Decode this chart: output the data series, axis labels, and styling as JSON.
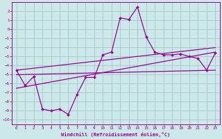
{
  "xlabel": "Windchill (Refroidissement éolien,°C)",
  "bg_color": "#cce8e8",
  "grid_color": "#aacccc",
  "line_color": "#990099",
  "xlim": [
    -0.5,
    23.5
  ],
  "ylim": [
    -10.5,
    3.0
  ],
  "xticks": [
    0,
    1,
    2,
    3,
    4,
    5,
    6,
    7,
    8,
    9,
    10,
    11,
    12,
    13,
    14,
    15,
    16,
    17,
    18,
    19,
    20,
    21,
    22,
    23
  ],
  "yticks": [
    2,
    1,
    0,
    -1,
    -2,
    -3,
    -4,
    -5,
    -6,
    -7,
    -8,
    -9,
    -10
  ],
  "series1_x": [
    0,
    1,
    2,
    3,
    4,
    5,
    6,
    7,
    8,
    9,
    10,
    11,
    12,
    13,
    14,
    15,
    16,
    17,
    18,
    19,
    20,
    21,
    22,
    23
  ],
  "series1_y": [
    -4.5,
    -6.2,
    -5.2,
    -8.8,
    -9.0,
    -8.8,
    -9.4,
    -7.2,
    -5.3,
    -5.3,
    -2.8,
    -2.5,
    1.3,
    1.1,
    2.5,
    -0.8,
    -2.5,
    -2.8,
    -2.8,
    -2.7,
    -3.0,
    -3.2,
    -4.5,
    -2.6
  ],
  "series2_x": [
    0,
    23
  ],
  "series2_y": [
    -6.5,
    -2.5
  ],
  "series3_x": [
    0,
    23
  ],
  "series3_y": [
    -4.5,
    -2.0
  ],
  "series4_x": [
    0,
    23
  ],
  "series4_y": [
    -5.0,
    -4.5
  ]
}
